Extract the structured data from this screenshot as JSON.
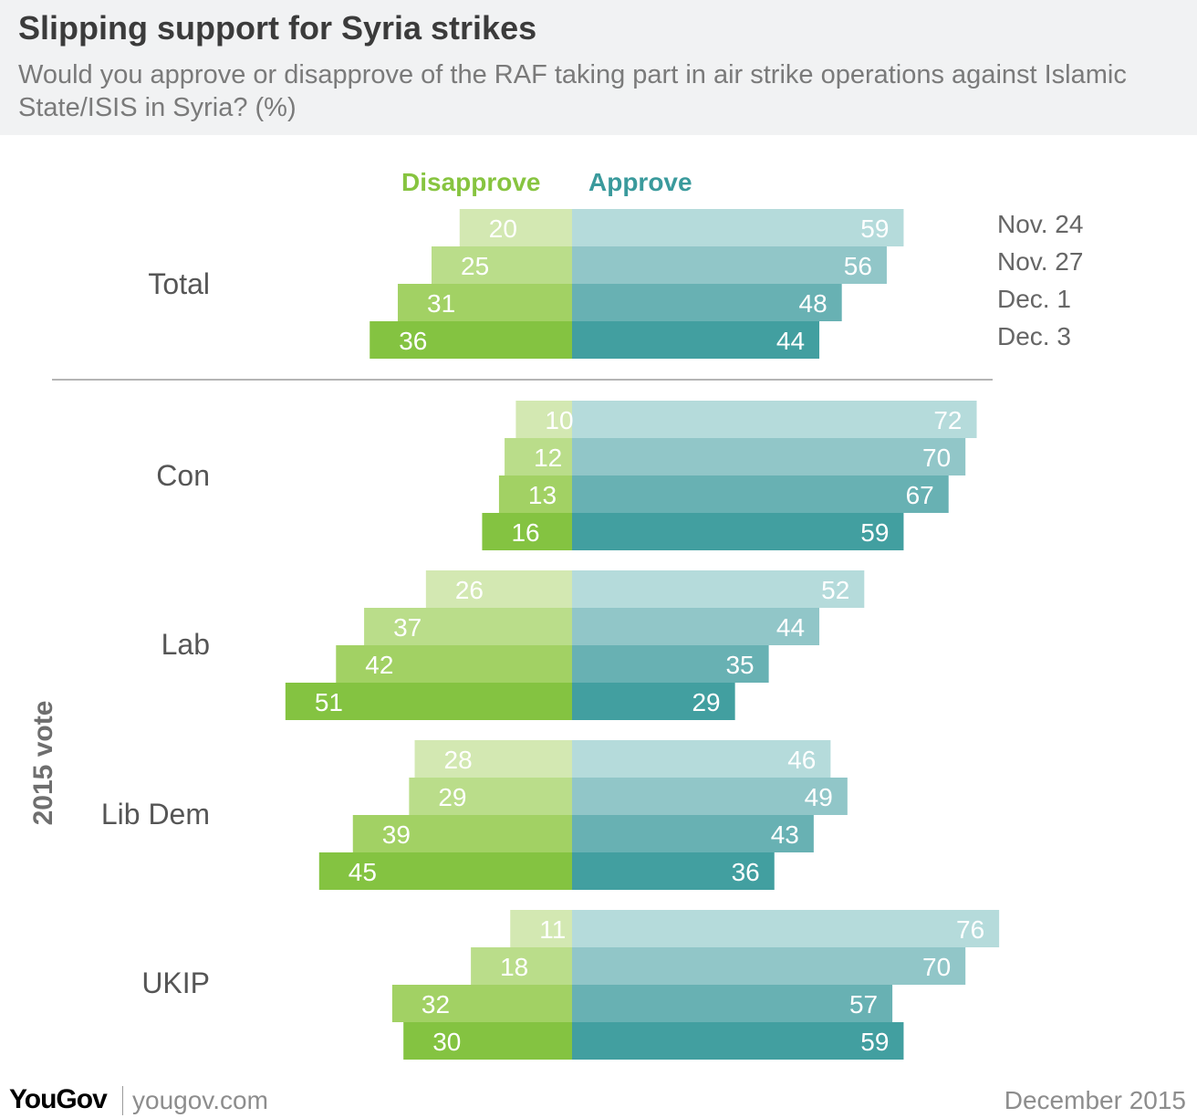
{
  "header": {
    "title": "Slipping support for Syria strikes",
    "subtitle": "Would you approve or disapprove of the RAF taking part in air strike operations against Islamic State/ISIS in Syria? (%)"
  },
  "legend": {
    "disapprove": "Disapprove",
    "approve": "Approve"
  },
  "axis_label": "2015 vote",
  "footer": {
    "brand": "YouGov",
    "site": "yougov.com",
    "date": "December 2015"
  },
  "colors": {
    "disapprove": [
      "#d3e8b2",
      "#badd8a",
      "#a2d164",
      "#84c341"
    ],
    "approve": [
      "#b5dbdb",
      "#91c6c8",
      "#68b1b3",
      "#429fa0"
    ],
    "divider": "#b5b5b5",
    "value_text": "#ffffff"
  },
  "chart_data": {
    "type": "bar",
    "orientation": "horizontal",
    "layout": "diverging",
    "waves": [
      "Nov. 24",
      "Nov. 27",
      "Dec. 1",
      "Dec. 3"
    ],
    "groups": [
      {
        "name": "Total",
        "disapprove": [
          20,
          25,
          31,
          36
        ],
        "approve": [
          59,
          56,
          48,
          44
        ]
      },
      {
        "name": "Con",
        "disapprove": [
          10,
          12,
          13,
          16
        ],
        "approve": [
          72,
          70,
          67,
          59
        ]
      },
      {
        "name": "Lab",
        "disapprove": [
          26,
          37,
          42,
          51
        ],
        "approve": [
          52,
          44,
          35,
          29
        ]
      },
      {
        "name": "Lib Dem",
        "disapprove": [
          28,
          29,
          39,
          45
        ],
        "approve": [
          46,
          49,
          43,
          36
        ]
      },
      {
        "name": "UKIP",
        "disapprove": [
          11,
          18,
          32,
          30
        ],
        "approve": [
          76,
          70,
          57,
          59
        ]
      }
    ]
  }
}
